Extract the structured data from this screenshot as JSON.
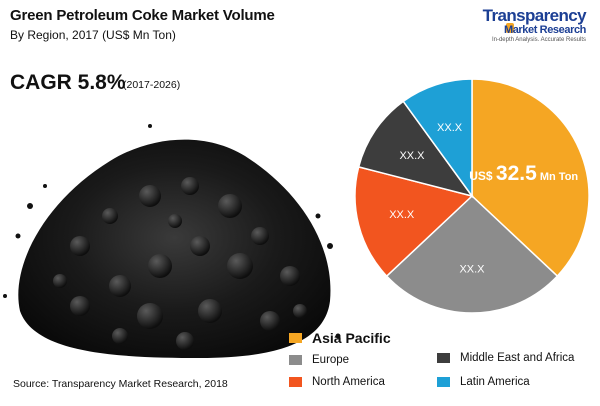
{
  "header": {
    "title": "Green Petroleum Coke Market Volume",
    "subtitle": "By Region, 2017 (US$ Mn Ton)"
  },
  "cagr": {
    "value": "CAGR 5.8%",
    "period": "(2017-2026)"
  },
  "logo": {
    "name": "Transparency",
    "sub": "Market Research",
    "tagline": "In-depth Analysis. Accurate Results"
  },
  "source": "Source: Transparency Market Research, 2018",
  "chart_data": {
    "type": "pie",
    "categories": [
      "Asia Pacific",
      "Europe",
      "North America",
      "Middle East and Africa",
      "Latin America"
    ],
    "values": [
      37,
      26,
      16,
      11,
      10
    ],
    "labels": {
      "asia_prefix": "US$",
      "asia_value": "32.5",
      "asia_unit": "Mn Ton",
      "other": "XX.X"
    },
    "colors": [
      "#f5a623",
      "#8c8c8c",
      "#f2551f",
      "#3d3d3d",
      "#1ea0d6"
    ],
    "legend_position": "bottom-right"
  }
}
